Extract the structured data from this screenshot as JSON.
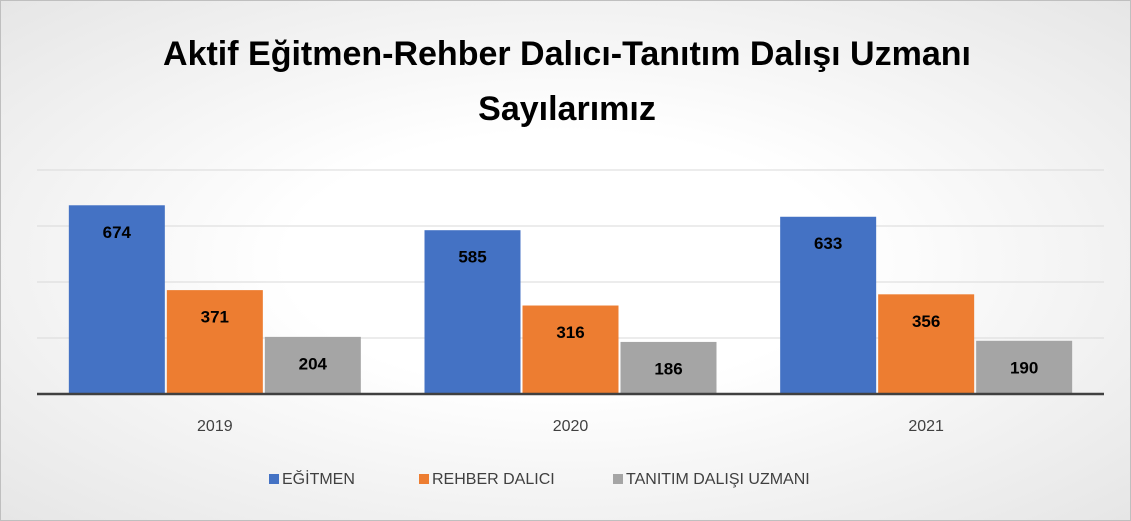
{
  "chart_data": {
    "type": "bar",
    "title": "Aktif Eğitmen-Rehber Dalıcı-Tanıtım Dalışı Uzmanı Sayılarımız",
    "categories": [
      "2019",
      "2020",
      "2021"
    ],
    "series": [
      {
        "name": "EĞİTMEN",
        "color": "#4472c4",
        "values": [
          674,
          585,
          633
        ]
      },
      {
        "name": "REHBER DALICI",
        "color": "#ed7d31",
        "values": [
          371,
          316,
          356
        ]
      },
      {
        "name": "TANITIM DALIŞI UZMANI",
        "color": "#a5a5a5",
        "values": [
          204,
          186,
          190
        ]
      }
    ],
    "ylim": [
      0,
      800
    ],
    "yticks": [
      0,
      200,
      400,
      600,
      800
    ],
    "grid": true,
    "legend": "bottom"
  }
}
